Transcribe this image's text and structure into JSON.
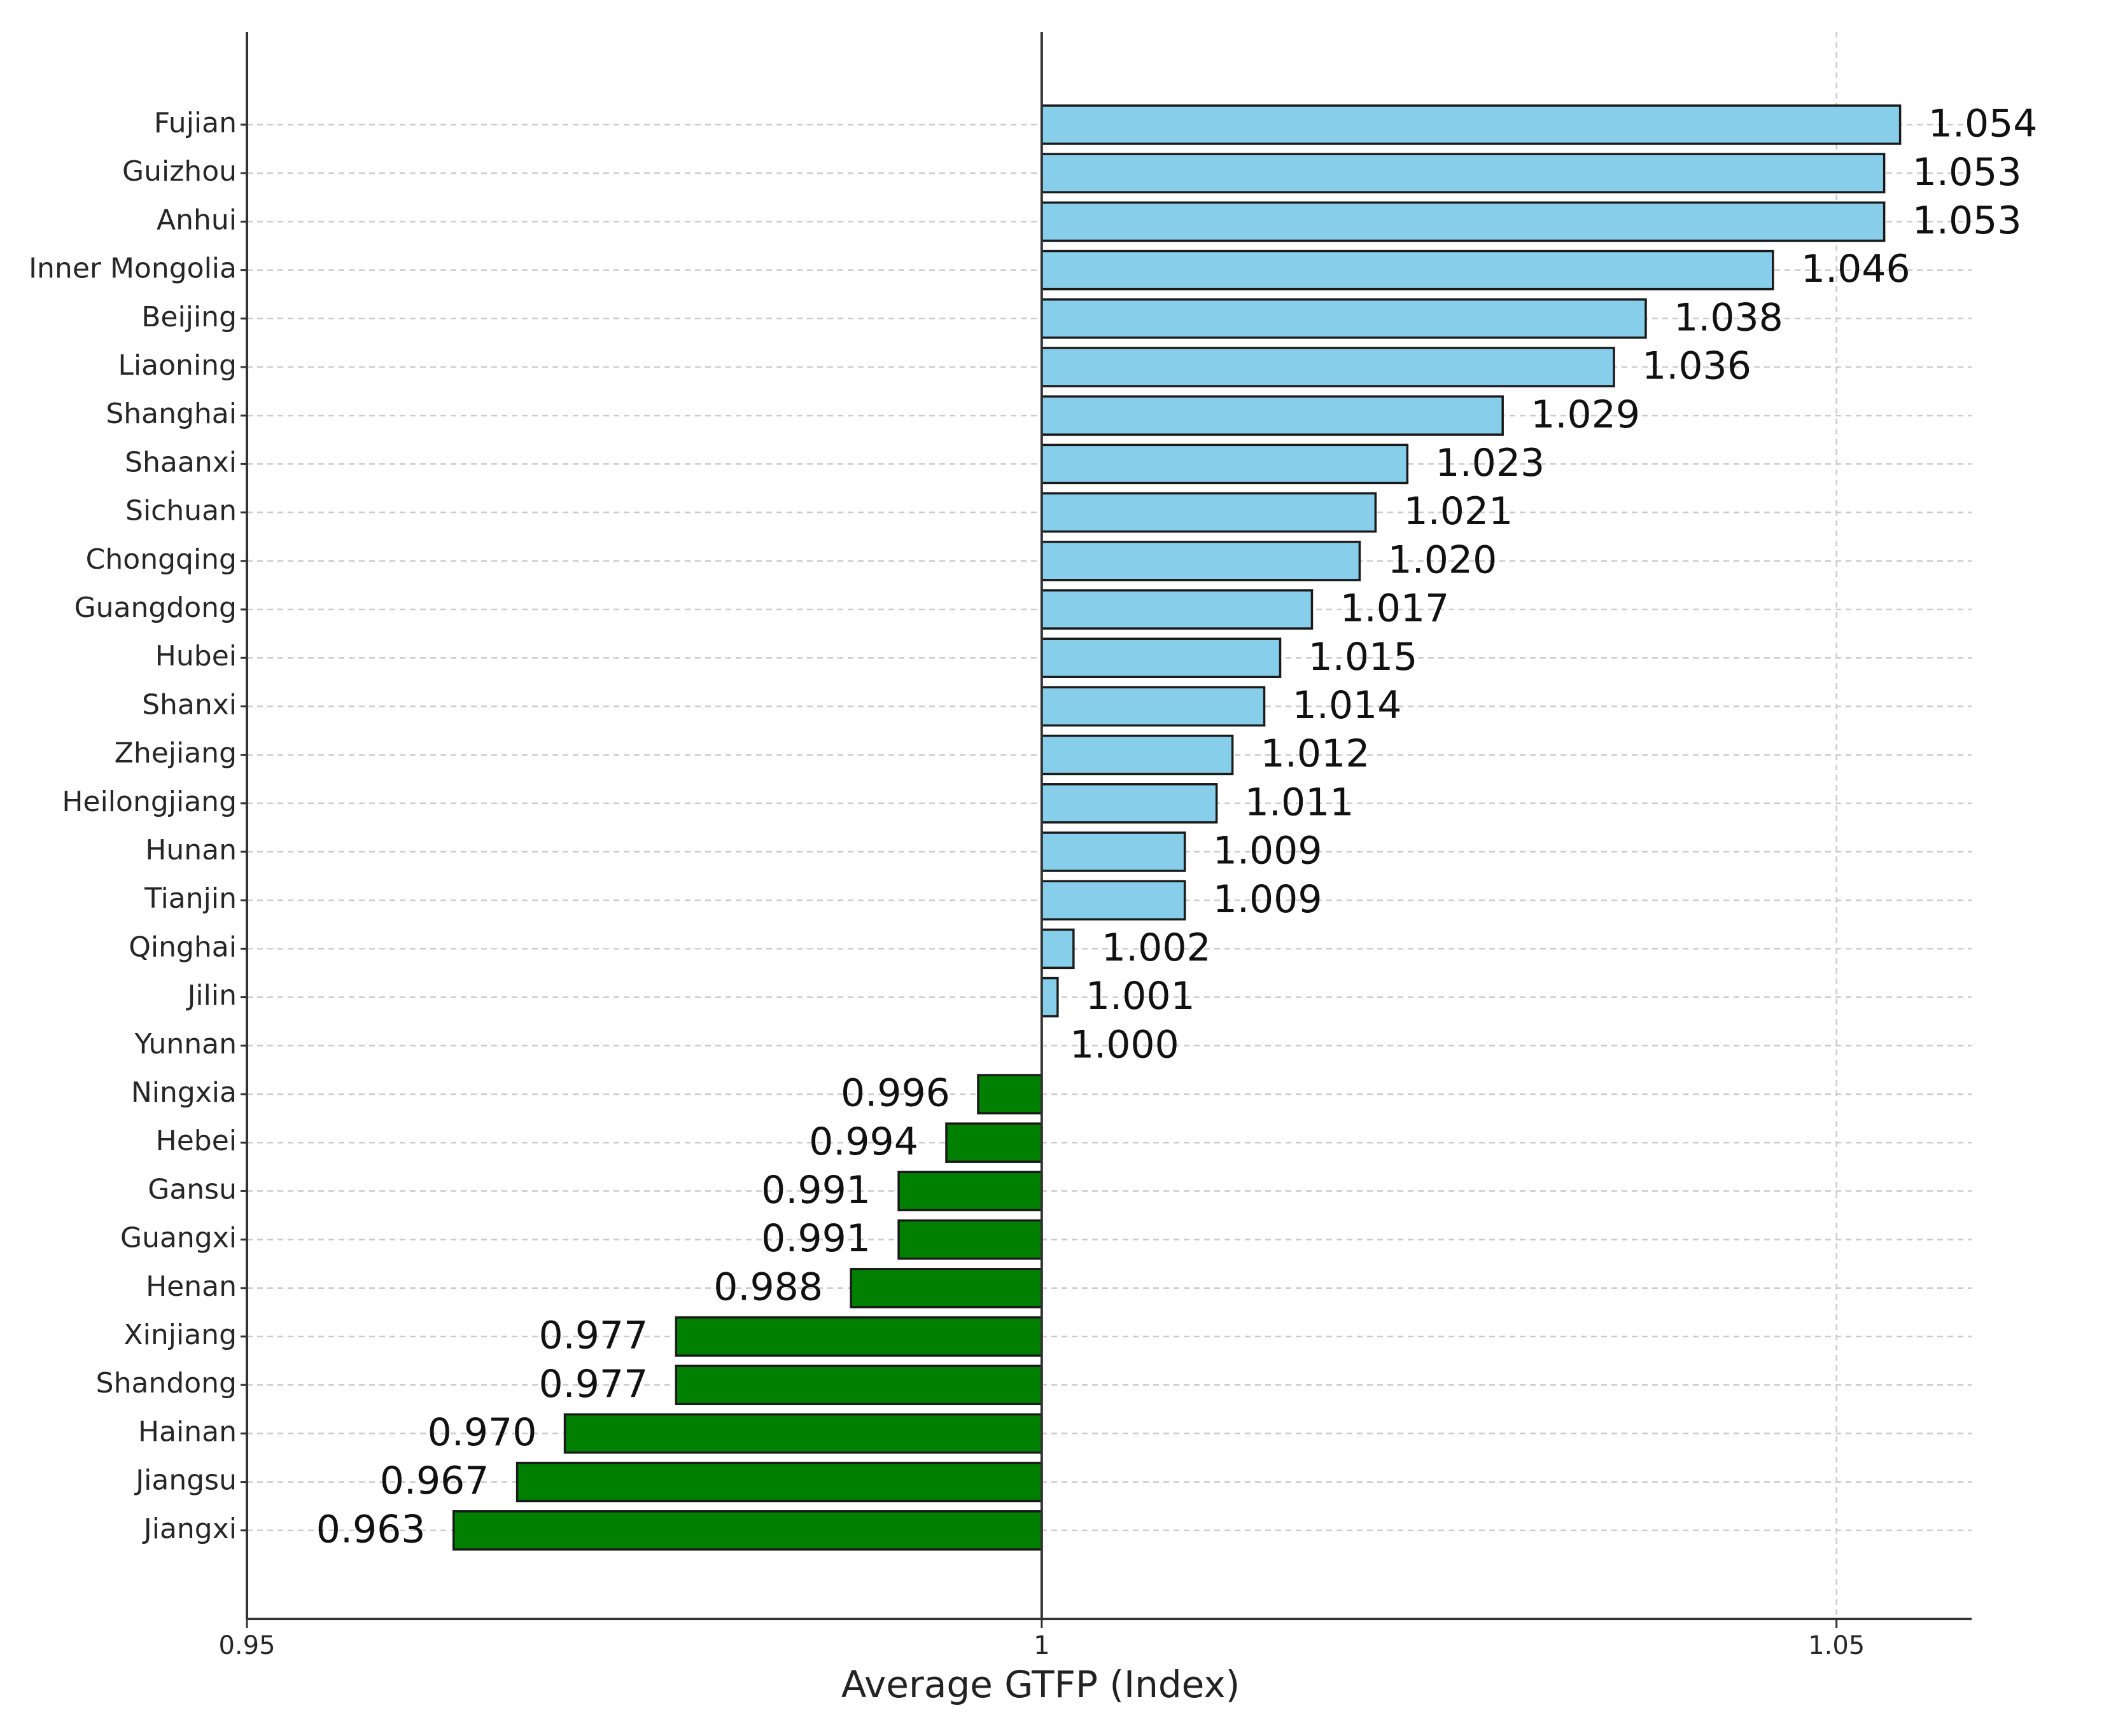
{
  "chart_data": {
    "type": "bar",
    "orientation": "horizontal",
    "baseline": 1,
    "categories": [
      "Fujian",
      "Guizhou",
      "Anhui",
      "Inner Mongolia",
      "Beijing",
      "Liaoning",
      "Shanghai",
      "Shaanxi",
      "Sichuan",
      "Chongqing",
      "Guangdong",
      "Hubei",
      "Shanxi",
      "Zhejiang",
      "Heilongjiang",
      "Hunan",
      "Tianjin",
      "Qinghai",
      "Jilin",
      "Yunnan",
      "Ningxia",
      "Hebei",
      "Gansu",
      "Guangxi",
      "Henan",
      "Xinjiang",
      "Shandong",
      "Hainan",
      "Jiangsu",
      "Jiangxi"
    ],
    "values": [
      1.054,
      1.053,
      1.053,
      1.046,
      1.038,
      1.036,
      1.029,
      1.023,
      1.021,
      1.02,
      1.017,
      1.015,
      1.014,
      1.012,
      1.011,
      1.009,
      1.009,
      1.002,
      1.001,
      1.0,
      0.996,
      0.994,
      0.991,
      0.991,
      0.988,
      0.977,
      0.977,
      0.97,
      0.967,
      0.963
    ],
    "value_labels": [
      "1.054",
      "1.053",
      "1.053",
      "1.046",
      "1.038",
      "1.036",
      "1.029",
      "1.023",
      "1.021",
      "1.020",
      "1.017",
      "1.015",
      "1.014",
      "1.012",
      "1.011",
      "1.009",
      "1.009",
      "1.002",
      "1.001",
      "1.000",
      "0.996",
      "0.994",
      "0.991",
      "0.991",
      "0.988",
      "0.977",
      "0.977",
      "0.970",
      "0.967",
      "0.963"
    ],
    "xlabel": "Average GTFP (Index)",
    "ylabel": "",
    "title": "",
    "xlim": [
      0.95,
      1.0585
    ],
    "xticks": [
      0.95,
      1,
      1.05
    ],
    "xtick_labels": [
      "0.95",
      "1",
      "1.05"
    ],
    "grid": true,
    "colors": {
      "above_baseline": "#87ceeb",
      "below_baseline": "#008000",
      "bar_edge": "#1a1a1a",
      "grid": "#cccccc",
      "axis": "#333333"
    }
  }
}
